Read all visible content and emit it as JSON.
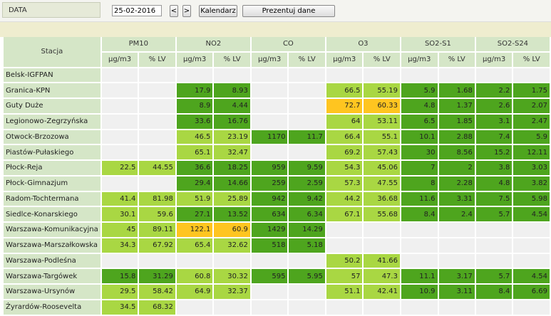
{
  "toolbar": {
    "label": "DATA",
    "date": "25-02-2016",
    "buttons": [
      "<",
      ">",
      "Kalendarz",
      "Prezentuj dane"
    ]
  },
  "table": {
    "station_header": "Stacja",
    "pollutants": [
      "PM10",
      "NO2",
      "CO",
      "O3",
      "SO2-S1",
      "SO2-S24"
    ],
    "units": [
      "µg/m3",
      "% LV"
    ],
    "rows": [
      {
        "station": "Belsk-IGFPAN",
        "readings": [
          null,
          null,
          null,
          null,
          null,
          null
        ]
      },
      {
        "station": "Granica-KPN",
        "readings": [
          null,
          {
            "values": [
              17.9,
              8.93
            ],
            "color": "#4ea51e"
          },
          null,
          {
            "values": [
              66.5,
              55.19
            ],
            "color": "#a9d743"
          },
          {
            "values": [
              5.9,
              1.68
            ],
            "color": "#4ea51e"
          },
          {
            "values": [
              2.2,
              1.75
            ],
            "color": "#4ea51e"
          }
        ]
      },
      {
        "station": "Guty Duże",
        "readings": [
          null,
          {
            "values": [
              8.9,
              4.44
            ],
            "color": "#4ea51e"
          },
          null,
          {
            "values": [
              72.7,
              60.33
            ],
            "color": "#ffc520"
          },
          {
            "values": [
              4.8,
              1.37
            ],
            "color": "#4ea51e"
          },
          {
            "values": [
              2.6,
              2.07
            ],
            "color": "#4ea51e"
          }
        ]
      },
      {
        "station": "Legionowo-Zegrzyńska",
        "readings": [
          null,
          {
            "values": [
              33.6,
              16.76
            ],
            "color": "#4ea51e"
          },
          null,
          {
            "values": [
              64,
              53.11
            ],
            "color": "#a9d743"
          },
          {
            "values": [
              6.5,
              1.85
            ],
            "color": "#4ea51e"
          },
          {
            "values": [
              3.1,
              2.47
            ],
            "color": "#4ea51e"
          }
        ]
      },
      {
        "station": "Otwock-Brzozowa",
        "readings": [
          null,
          {
            "values": [
              46.5,
              23.19
            ],
            "color": "#a9d743"
          },
          {
            "values": [
              1170,
              11.7
            ],
            "color": "#4ea51e"
          },
          {
            "values": [
              66.4,
              55.1
            ],
            "color": "#a9d743"
          },
          {
            "values": [
              10.1,
              2.88
            ],
            "color": "#4ea51e"
          },
          {
            "values": [
              7.4,
              5.9
            ],
            "color": "#4ea51e"
          }
        ]
      },
      {
        "station": "Piastów-Pułaskiego",
        "readings": [
          null,
          {
            "values": [
              65.1,
              32.47
            ],
            "color": "#a9d743"
          },
          null,
          {
            "values": [
              69.2,
              57.43
            ],
            "color": "#a9d743"
          },
          {
            "values": [
              30,
              8.56
            ],
            "color": "#4ea51e"
          },
          {
            "values": [
              15.2,
              12.11
            ],
            "color": "#4ea51e"
          }
        ]
      },
      {
        "station": "Płock-Reja",
        "readings": [
          {
            "values": [
              22.5,
              44.55
            ],
            "color": "#a9d743"
          },
          {
            "values": [
              36.6,
              18.25
            ],
            "color": "#4ea51e"
          },
          {
            "values": [
              959,
              9.59
            ],
            "color": "#4ea51e"
          },
          {
            "values": [
              54.3,
              45.06
            ],
            "color": "#a9d743"
          },
          {
            "values": [
              7,
              2
            ],
            "color": "#4ea51e"
          },
          {
            "values": [
              3.8,
              3.03
            ],
            "color": "#4ea51e"
          }
        ]
      },
      {
        "station": "Płock-Gimnazjum",
        "readings": [
          null,
          {
            "values": [
              29.4,
              14.66
            ],
            "color": "#4ea51e"
          },
          {
            "values": [
              259,
              2.59
            ],
            "color": "#4ea51e"
          },
          {
            "values": [
              57.3,
              47.55
            ],
            "color": "#a9d743"
          },
          {
            "values": [
              8,
              2.28
            ],
            "color": "#4ea51e"
          },
          {
            "values": [
              4.8,
              3.82
            ],
            "color": "#4ea51e"
          }
        ]
      },
      {
        "station": "Radom-Tochtermana",
        "readings": [
          {
            "values": [
              41.4,
              81.98
            ],
            "color": "#a9d743"
          },
          {
            "values": [
              51.9,
              25.89
            ],
            "color": "#a9d743"
          },
          {
            "values": [
              942,
              9.42
            ],
            "color": "#4ea51e"
          },
          {
            "values": [
              44.2,
              36.68
            ],
            "color": "#a9d743"
          },
          {
            "values": [
              11.6,
              3.31
            ],
            "color": "#4ea51e"
          },
          {
            "values": [
              7.5,
              5.98
            ],
            "color": "#4ea51e"
          }
        ]
      },
      {
        "station": "Siedlce-Konarskiego",
        "readings": [
          {
            "values": [
              30.1,
              59.6
            ],
            "color": "#a9d743"
          },
          {
            "values": [
              27.1,
              13.52
            ],
            "color": "#4ea51e"
          },
          {
            "values": [
              634,
              6.34
            ],
            "color": "#4ea51e"
          },
          {
            "values": [
              67.1,
              55.68
            ],
            "color": "#a9d743"
          },
          {
            "values": [
              8.4,
              2.4
            ],
            "color": "#4ea51e"
          },
          {
            "values": [
              5.7,
              4.54
            ],
            "color": "#4ea51e"
          }
        ]
      },
      {
        "station": "Warszawa-Komunikacyjna",
        "readings": [
          {
            "values": [
              45,
              89.11
            ],
            "color": "#a9d743"
          },
          {
            "values": [
              122.1,
              60.9
            ],
            "color": "#ffc520"
          },
          {
            "values": [
              1429,
              14.29
            ],
            "color": "#4ea51e"
          },
          null,
          null,
          null
        ]
      },
      {
        "station": "Warszawa-Marszałkowska",
        "readings": [
          {
            "values": [
              34.3,
              67.92
            ],
            "color": "#a9d743"
          },
          {
            "values": [
              65.4,
              32.62
            ],
            "color": "#a9d743"
          },
          {
            "values": [
              518,
              5.18
            ],
            "color": "#4ea51e"
          },
          null,
          null,
          null
        ]
      },
      {
        "station": "Warszawa-Podleśna",
        "readings": [
          null,
          null,
          null,
          {
            "values": [
              50.2,
              41.66
            ],
            "color": "#a9d743"
          },
          null,
          null
        ]
      },
      {
        "station": "Warszawa-Targówek",
        "readings": [
          {
            "values": [
              15.8,
              31.29
            ],
            "color": "#4ea51e"
          },
          {
            "values": [
              60.8,
              30.32
            ],
            "color": "#a9d743"
          },
          {
            "values": [
              595,
              5.95
            ],
            "color": "#4ea51e"
          },
          {
            "values": [
              57,
              47.3
            ],
            "color": "#a9d743"
          },
          {
            "values": [
              11.1,
              3.17
            ],
            "color": "#4ea51e"
          },
          {
            "values": [
              5.7,
              4.54
            ],
            "color": "#4ea51e"
          }
        ]
      },
      {
        "station": "Warszawa-Ursynów",
        "readings": [
          {
            "values": [
              29.5,
              58.42
            ],
            "color": "#a9d743"
          },
          {
            "values": [
              64.9,
              32.37
            ],
            "color": "#a9d743"
          },
          null,
          {
            "values": [
              51.1,
              42.41
            ],
            "color": "#a9d743"
          },
          {
            "values": [
              10.9,
              3.11
            ],
            "color": "#4ea51e"
          },
          {
            "values": [
              8.4,
              6.69
            ],
            "color": "#4ea51e"
          }
        ]
      },
      {
        "station": "Żyrardów-Roosevelta",
        "readings": [
          {
            "values": [
              34.5,
              68.32
            ],
            "color": "#a9d743"
          },
          null,
          null,
          null,
          null,
          null
        ]
      }
    ]
  }
}
